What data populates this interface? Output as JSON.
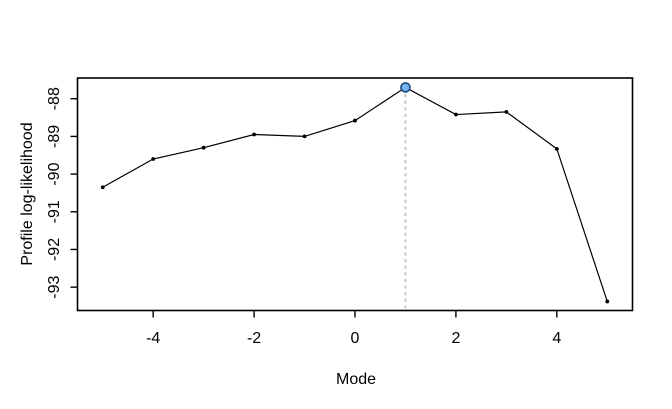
{
  "page": {
    "background": "#ffffff"
  },
  "chart_data": {
    "type": "line",
    "title": "",
    "xlabel": "Mode",
    "ylabel": "Profile log-likelihood",
    "x": [
      -5,
      -4,
      -3,
      -2,
      -1,
      0,
      1,
      2,
      3,
      4,
      5
    ],
    "y": [
      -90.35,
      -89.6,
      -89.3,
      -88.95,
      -89.0,
      -88.58,
      -87.7,
      -88.42,
      -88.35,
      -89.33,
      -93.38
    ],
    "xlim": [
      -5.5,
      5.5
    ],
    "ylim": [
      -93.62,
      -87.45
    ],
    "x_ticks": [
      -4,
      -2,
      0,
      2,
      4
    ],
    "y_ticks": [
      -93,
      -92,
      -91,
      -90,
      -89,
      -88
    ],
    "x_tick_labels": [
      "-4",
      "-2",
      "0",
      "2",
      "4"
    ],
    "y_tick_labels": [
      "-93",
      "-92",
      "-91",
      "-90",
      "-89",
      "-88"
    ],
    "grid": false,
    "legend": null,
    "line_color": "#000000",
    "marker": "filled-circle",
    "marker_color": "#000000",
    "axis_color": "#000000",
    "highlight_point": {
      "x": 1,
      "y": -87.7,
      "fill": "#74b6f2",
      "stroke": "#1b4a7e"
    },
    "vline": {
      "x": 1,
      "style": "dashed",
      "color": "#c8c8c8"
    }
  }
}
